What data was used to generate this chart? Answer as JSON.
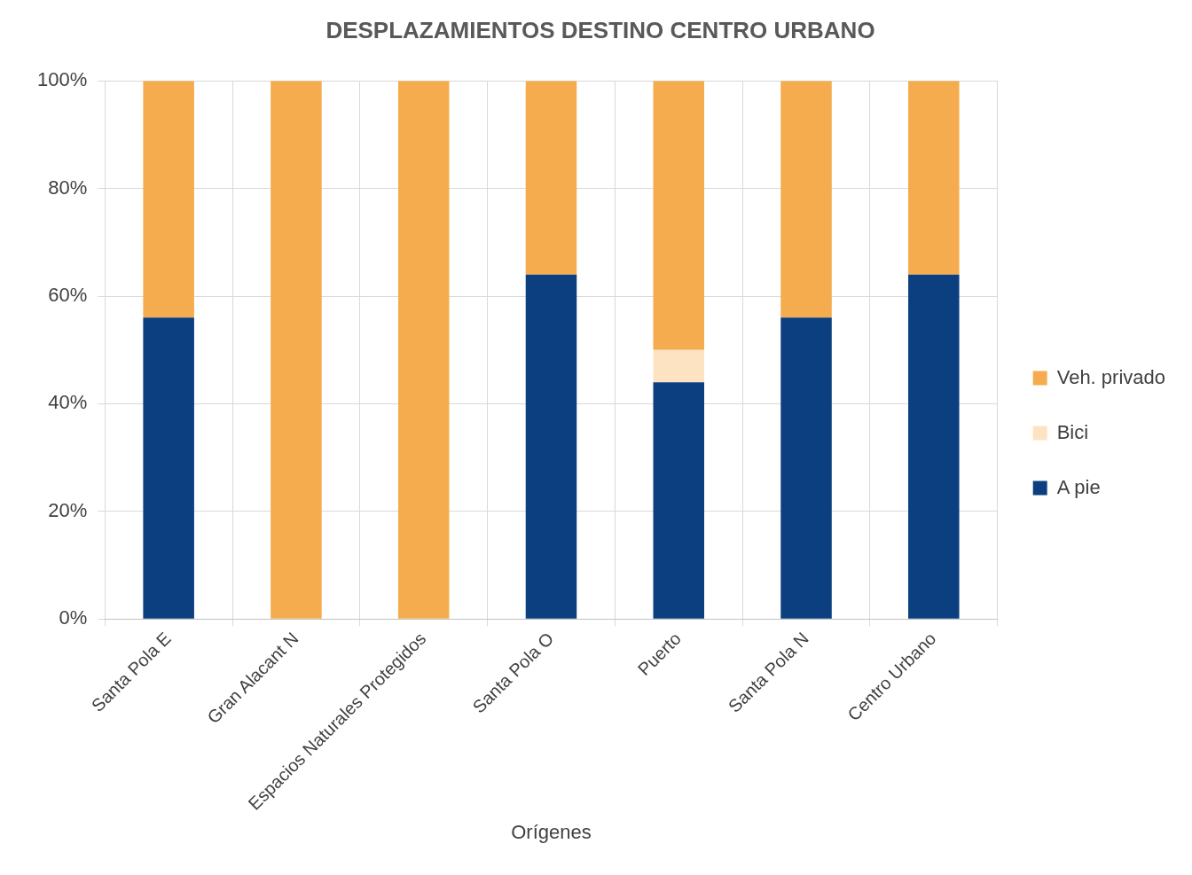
{
  "chart_data": {
    "type": "bar",
    "title": "DESPLAZAMIENTOS DESTINO CENTRO URBANO",
    "xlabel": "Orígenes",
    "categories": [
      "Santa Pola E",
      "Gran Alacant N",
      "Espacios Naturales Protegidos",
      "Santa Pola O",
      "Puerto",
      "Santa Pola N",
      "Centro Urbano"
    ],
    "series": [
      {
        "name": "A pie",
        "color": "#0b3f80",
        "values": [
          56,
          0,
          0,
          64,
          44,
          56,
          64
        ]
      },
      {
        "name": "Bici",
        "color": "#fde3c2",
        "values": [
          0,
          0,
          0,
          0,
          6,
          0,
          0
        ]
      },
      {
        "name": "Veh. privado",
        "color": "#f5ac4e",
        "values": [
          44,
          100,
          100,
          36,
          50,
          44,
          36
        ]
      }
    ],
    "stacked": true,
    "ylim": [
      0,
      100
    ],
    "yticks": [
      {
        "value": 0,
        "label": "0%"
      },
      {
        "value": 20,
        "label": "20%"
      },
      {
        "value": 40,
        "label": "40%"
      },
      {
        "value": 60,
        "label": "60%"
      },
      {
        "value": 80,
        "label": "80%"
      },
      {
        "value": 100,
        "label": "100%"
      }
    ],
    "grid": true,
    "legend": "right"
  }
}
